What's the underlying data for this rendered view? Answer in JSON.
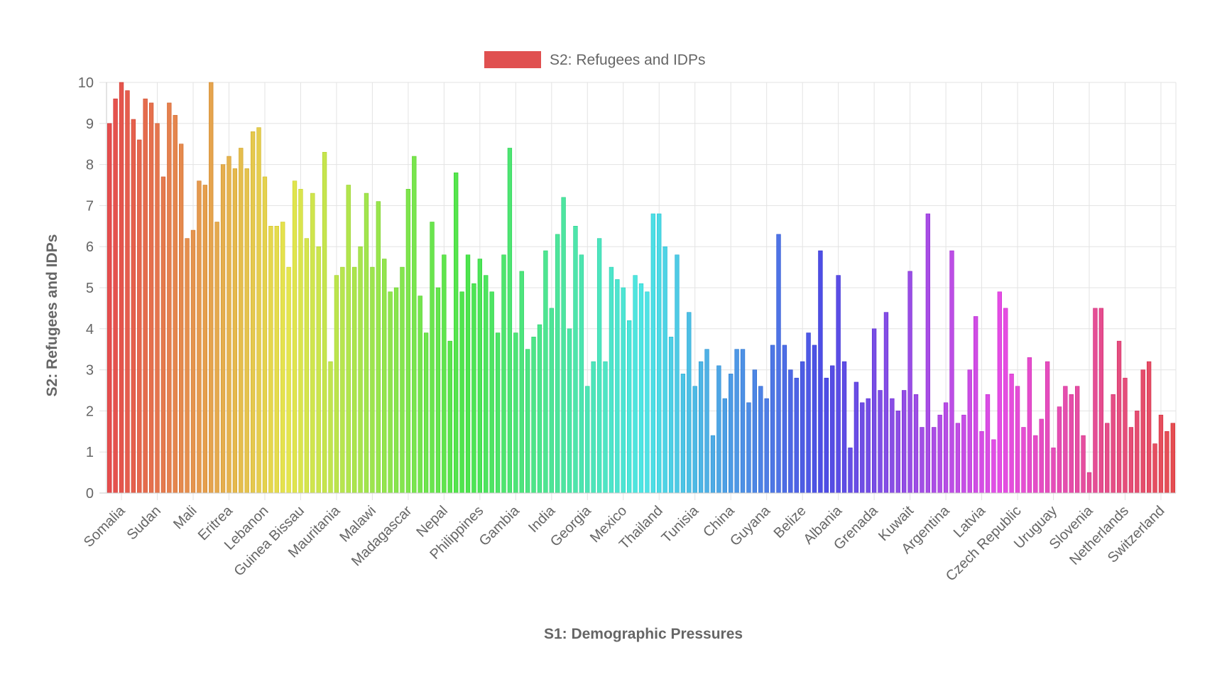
{
  "chart_data": {
    "type": "bar",
    "legend_position": "top",
    "grid": true,
    "xlabel": "S1: Demographic Pressures",
    "ylabel": "S2: Refugees and IDPs",
    "ylim": [
      0,
      10
    ],
    "y_ticks": [
      "0",
      "1",
      "2",
      "3",
      "4",
      "5",
      "6",
      "7",
      "8",
      "9",
      "10"
    ],
    "series": [
      {
        "name": "S2: Refugees and IDPs",
        "legend_color": "#e05050",
        "values": [
          9.0,
          9.6,
          10.0,
          9.8,
          9.1,
          8.6,
          9.6,
          9.5,
          9.0,
          7.7,
          9.5,
          9.2,
          8.5,
          6.2,
          6.4,
          7.6,
          7.5,
          10.0,
          6.6,
          8.0,
          8.2,
          7.9,
          8.4,
          7.9,
          8.8,
          8.9,
          7.7,
          6.5,
          6.5,
          6.6,
          5.5,
          7.6,
          7.4,
          6.2,
          7.3,
          6.0,
          8.3,
          3.2,
          5.3,
          5.5,
          7.5,
          5.5,
          6.0,
          7.3,
          5.5,
          7.1,
          5.7,
          4.9,
          5.0,
          5.5,
          7.4,
          8.2,
          4.8,
          3.9,
          6.6,
          5.0,
          5.8,
          3.7,
          7.8,
          4.9,
          5.8,
          5.1,
          5.7,
          5.3,
          4.9,
          3.9,
          5.8,
          8.4,
          3.9,
          5.4,
          3.5,
          3.8,
          4.1,
          5.9,
          4.5,
          6.3,
          7.2,
          4.0,
          6.5,
          5.8,
          2.6,
          3.2,
          6.2,
          3.2,
          5.5,
          5.2,
          5.0,
          4.2,
          5.3,
          5.1,
          4.9,
          6.8,
          6.8,
          6.0,
          3.8,
          5.8,
          2.9,
          4.4,
          2.6,
          3.2,
          3.5,
          1.4,
          3.1,
          2.3,
          2.9,
          3.5,
          3.5,
          2.2,
          3.0,
          2.6,
          2.3,
          3.6,
          6.3,
          3.6,
          3.0,
          2.8,
          3.2,
          3.9,
          3.6,
          5.9,
          2.8,
          3.1,
          5.3,
          3.2,
          1.1,
          2.7,
          2.2,
          2.3,
          4.0,
          2.5,
          4.4,
          2.3,
          2.0,
          2.5,
          5.4,
          2.4,
          1.6,
          6.8,
          1.6,
          1.9,
          2.2,
          5.9,
          1.7,
          1.9,
          3.0,
          4.3,
          1.5,
          2.4,
          1.3,
          4.9,
          4.5,
          2.9,
          2.6,
          1.6,
          3.3,
          1.4,
          1.8,
          3.2,
          1.1,
          2.1,
          2.6,
          2.4,
          2.6,
          1.4,
          0.5,
          4.5,
          4.5,
          1.7,
          2.4,
          3.7,
          2.8,
          1.6,
          2.0,
          3.0,
          3.2,
          1.2,
          1.9,
          1.5,
          1.7
        ]
      }
    ],
    "categories_labeled": [
      {
        "index": 2,
        "label": "Somalia"
      },
      {
        "index": 8,
        "label": "Sudan"
      },
      {
        "index": 14,
        "label": "Mali"
      },
      {
        "index": 20,
        "label": "Eritrea"
      },
      {
        "index": 26,
        "label": "Lebanon"
      },
      {
        "index": 32,
        "label": "Guinea Bissau"
      },
      {
        "index": 38,
        "label": "Mauritania"
      },
      {
        "index": 44,
        "label": "Malawi"
      },
      {
        "index": 50,
        "label": "Madagascar"
      },
      {
        "index": 56,
        "label": "Nepal"
      },
      {
        "index": 62,
        "label": "Philippines"
      },
      {
        "index": 68,
        "label": "Gambia"
      },
      {
        "index": 74,
        "label": "India"
      },
      {
        "index": 80,
        "label": "Georgia"
      },
      {
        "index": 86,
        "label": "Mexico"
      },
      {
        "index": 92,
        "label": "Thailand"
      },
      {
        "index": 98,
        "label": "Tunisia"
      },
      {
        "index": 104,
        "label": "China"
      },
      {
        "index": 110,
        "label": "Guyana"
      },
      {
        "index": 116,
        "label": "Belize"
      },
      {
        "index": 122,
        "label": "Albania"
      },
      {
        "index": 128,
        "label": "Grenada"
      },
      {
        "index": 134,
        "label": "Kuwait"
      },
      {
        "index": 140,
        "label": "Argentina"
      },
      {
        "index": 146,
        "label": "Latvia"
      },
      {
        "index": 152,
        "label": "Czech Republic"
      },
      {
        "index": 158,
        "label": "Uruguay"
      },
      {
        "index": 164,
        "label": "Slovenia"
      },
      {
        "index": 170,
        "label": "Netherlands"
      },
      {
        "index": 176,
        "label": "Switzerland"
      }
    ]
  }
}
